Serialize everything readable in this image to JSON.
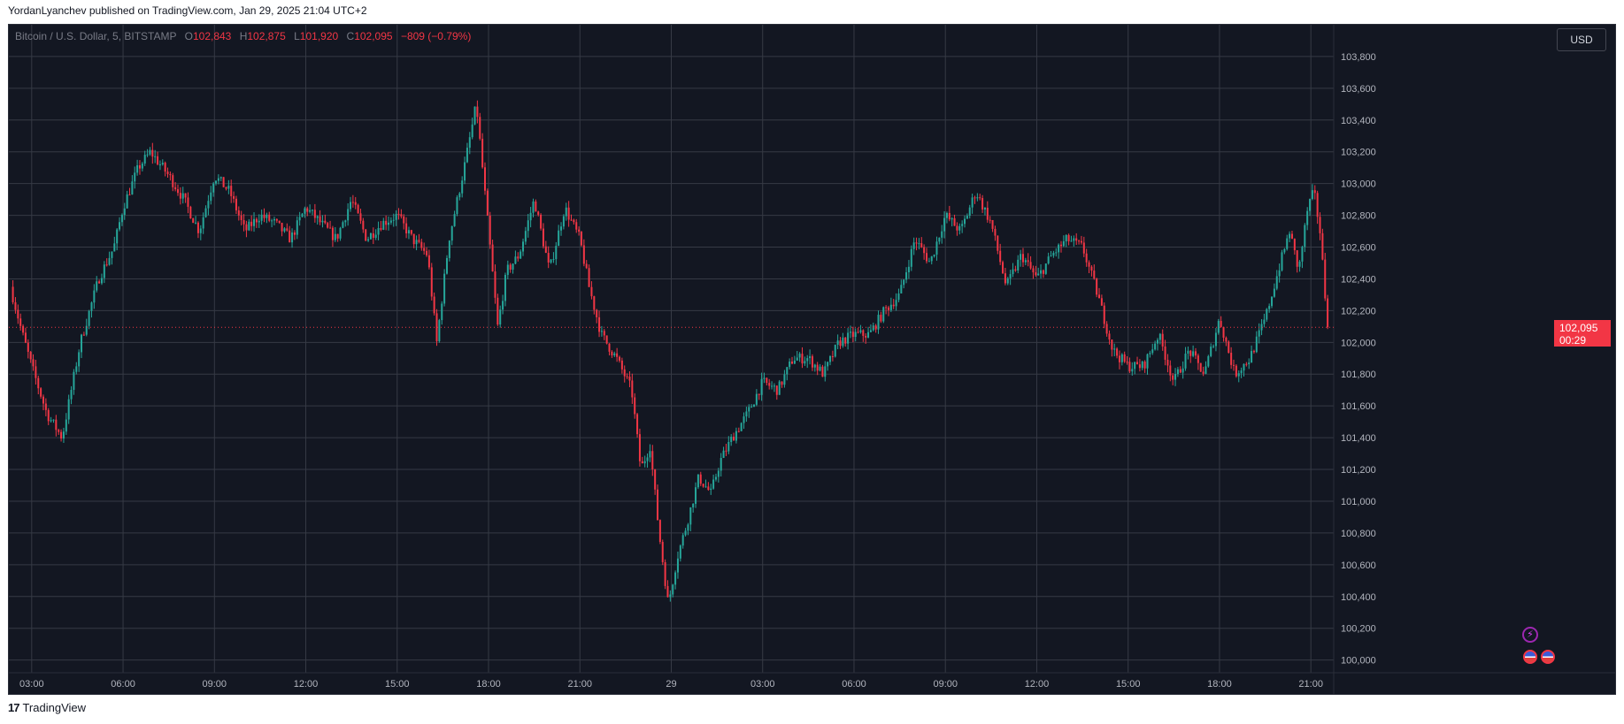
{
  "header": {
    "publisher_text": "YordanLyanchev published on TradingView.com, Jan 29, 2025 21:04 UTC+2"
  },
  "legend": {
    "symbol": "Bitcoin / U.S. Dollar, 5, BITSTAMP",
    "open_label": "O",
    "open_value": "102,843",
    "high_label": "H",
    "high_value": "102,875",
    "low_label": "L",
    "low_value": "101,920",
    "close_label": "C",
    "close_value": "102,095",
    "change": "−809 (−0.79%)"
  },
  "currency_button": "USD",
  "last_price": {
    "price": "102,095",
    "countdown": "00:29"
  },
  "footer": {
    "brand": "TradingView"
  },
  "colors": {
    "up": "#26a69a",
    "down": "#f23645",
    "background": "#131722",
    "grid": "#363a45",
    "axis_text": "#b2b5be"
  },
  "icons": [
    "lightning-icon",
    "us-flag-icon",
    "us-flag-icon",
    "tradingview-logo-icon"
  ],
  "chart_data": {
    "type": "candlestick",
    "symbol": "Bitcoin / U.S. Dollar",
    "interval": "5",
    "exchange": "BITSTAMP",
    "y_range": [
      99920,
      104000
    ],
    "y_ticks": [
      {
        "value": 100000,
        "label": "100,000"
      },
      {
        "value": 100200,
        "label": "100,200"
      },
      {
        "value": 100400,
        "label": "100,400"
      },
      {
        "value": 100600,
        "label": "100,600"
      },
      {
        "value": 100800,
        "label": "100,800"
      },
      {
        "value": 101000,
        "label": "101,000"
      },
      {
        "value": 101200,
        "label": "101,200"
      },
      {
        "value": 101400,
        "label": "101,400"
      },
      {
        "value": 101600,
        "label": "101,600"
      },
      {
        "value": 101800,
        "label": "101,800"
      },
      {
        "value": 102000,
        "label": "102,000"
      },
      {
        "value": 102200,
        "label": "102,200"
      },
      {
        "value": 102400,
        "label": "102,400"
      },
      {
        "value": 102600,
        "label": "102,600"
      },
      {
        "value": 102800,
        "label": "102,800"
      },
      {
        "value": 103000,
        "label": "103,000"
      },
      {
        "value": 103200,
        "label": "103,200"
      },
      {
        "value": 103400,
        "label": "103,400"
      },
      {
        "value": 103600,
        "label": "103,600"
      },
      {
        "value": 103800,
        "label": "103,800"
      }
    ],
    "x_range": [
      2.75,
      21.25
    ],
    "x_ticks": [
      {
        "value": 3,
        "label": "03:00"
      },
      {
        "value": 6,
        "label": "06:00"
      },
      {
        "value": 9,
        "label": "09:00"
      },
      {
        "value": 12,
        "label": "12:00"
      },
      {
        "value": 15,
        "label": "15:00"
      },
      {
        "value": 18,
        "label": "18:00"
      },
      {
        "value": 21,
        "label": "21:00"
      },
      {
        "value": 24,
        "label": "29"
      },
      {
        "value": 27,
        "label": "03:00"
      },
      {
        "value": 30,
        "label": "06:00"
      },
      {
        "value": 33,
        "label": "09:00"
      },
      {
        "value": 36,
        "label": "12:00"
      },
      {
        "value": 39,
        "label": "15:00"
      },
      {
        "value": 42,
        "label": "18:00"
      },
      {
        "value": 45,
        "label": "21:00"
      }
    ],
    "x_domain_hours": [
      2.25,
      45.75
    ],
    "last_price": 102095,
    "path_hours": [
      2.3,
      2.7,
      3.0,
      3.5,
      4.0,
      4.6,
      5.2,
      5.7,
      6.0,
      6.5,
      6.9,
      7.5,
      8.0,
      8.5,
      9.0,
      9.5,
      10.0,
      10.5,
      11.0,
      11.5,
      12.0,
      12.5,
      13.0,
      13.5,
      14.0,
      14.5,
      15.0,
      15.5,
      16.0,
      16.3,
      16.7,
      17.2,
      17.6,
      18.0,
      18.3,
      18.6,
      19.0,
      19.5,
      20.0,
      20.5,
      21.0,
      21.3,
      21.7,
      22.2,
      22.7,
      23.0,
      23.3,
      23.6,
      23.9,
      24.2,
      24.5,
      24.9,
      25.3,
      25.6,
      26.0,
      26.5,
      27.0,
      27.5,
      28.0,
      28.5,
      29.0,
      29.5,
      30.0,
      30.5,
      31.0,
      31.5,
      32.0,
      32.5,
      33.0,
      33.5,
      34.0,
      34.5,
      35.0,
      35.5,
      36.0,
      36.5,
      37.0,
      37.5,
      38.0,
      38.5,
      39.0,
      39.5,
      40.0,
      40.5,
      41.0,
      41.5,
      42.0,
      42.5,
      43.0,
      43.5,
      44.0,
      44.3,
      44.6,
      44.9,
      45.1,
      45.3,
      45.55
    ],
    "path_close": [
      102350,
      102050,
      101850,
      101550,
      101400,
      102000,
      102400,
      102600,
      102850,
      103100,
      103200,
      103050,
      102900,
      102700,
      103050,
      102950,
      102700,
      102800,
      102750,
      102650,
      102850,
      102750,
      102650,
      102900,
      102650,
      102750,
      102800,
      102650,
      102550,
      102000,
      102650,
      103100,
      103500,
      102700,
      102100,
      102450,
      102550,
      102900,
      102450,
      102850,
      102650,
      102350,
      102050,
      101900,
      101700,
      101200,
      101350,
      100800,
      100350,
      100650,
      100850,
      101150,
      101050,
      101250,
      101400,
      101550,
      101750,
      101700,
      101900,
      101900,
      101800,
      102000,
      102050,
      102050,
      102200,
      102300,
      102650,
      102500,
      102800,
      102700,
      102950,
      102750,
      102350,
      102550,
      102400,
      102550,
      102650,
      102600,
      102300,
      101950,
      101850,
      101850,
      102050,
      101750,
      101950,
      101800,
      102150,
      101800,
      101900,
      102150,
      102500,
      102700,
      102450,
      102850,
      102950,
      102700,
      102095
    ]
  }
}
